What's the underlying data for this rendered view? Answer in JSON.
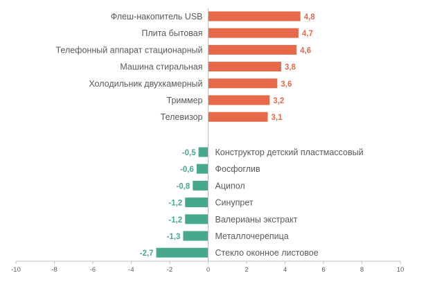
{
  "chart_data": {
    "type": "bar",
    "orientation": "horizontal",
    "title": "",
    "xlabel": "",
    "ylabel": "",
    "xlim": [
      -10,
      10
    ],
    "xticks": [
      -10,
      -8,
      -6,
      -4,
      -2,
      0,
      2,
      4,
      6,
      8,
      10
    ],
    "grid": false,
    "legend": "none",
    "colors": {
      "positive": "#E8694A",
      "negative": "#46A98E",
      "axis": "#BFBFBF",
      "text": "#595959"
    },
    "groups": [
      {
        "name": "positive",
        "items": [
          {
            "category": "Флеш-накопитель USB",
            "value": 4.8,
            "label": "4,8"
          },
          {
            "category": "Плита бытовая",
            "value": 4.7,
            "label": "4,7"
          },
          {
            "category": "Телефонный аппарат стационарный",
            "value": 4.6,
            "label": "4,6"
          },
          {
            "category": "Машина стиральная",
            "value": 3.8,
            "label": "3,8"
          },
          {
            "category": "Холодильник двухкамерный",
            "value": 3.6,
            "label": "3,6"
          },
          {
            "category": "Триммер",
            "value": 3.2,
            "label": "3,2"
          },
          {
            "category": "Телевизор",
            "value": 3.1,
            "label": "3,1"
          }
        ]
      },
      {
        "name": "negative",
        "items": [
          {
            "category": "Конструктор детский пластмассовый",
            "value": -0.5,
            "label": "-0,5"
          },
          {
            "category": "Фосфоглив",
            "value": -0.6,
            "label": "-0,6"
          },
          {
            "category": "Аципол",
            "value": -0.8,
            "label": "-0,8"
          },
          {
            "category": "Синупрет",
            "value": -1.2,
            "label": "-1,2"
          },
          {
            "category": "Валерианы экстракт",
            "value": -1.2,
            "label": "-1,2"
          },
          {
            "category": "Металлочерепица",
            "value": -1.3,
            "label": "-1,3"
          },
          {
            "category": "Стекло оконное листовое",
            "value": -2.7,
            "label": "-2,7"
          }
        ]
      }
    ]
  }
}
